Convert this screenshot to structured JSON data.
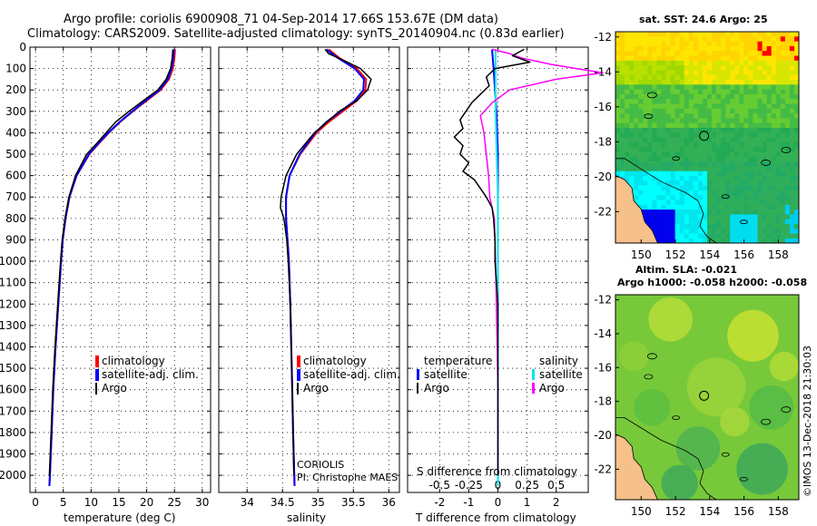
{
  "header": {
    "title_line1": "Argo profile: coriolis 6900908_71 04-Sep-2014 17.66S 153.67E (DM data)",
    "title_line2": "Climatology: CARS2009. Satellite-adjusted climatology: synTS_20140904.nc (0.83d earlier)"
  },
  "colors": {
    "climatology": "#ff0000",
    "satellite": "#0000ff",
    "argo": "#000000",
    "salinity_satellite": "#00e5ee",
    "salinity_argo": "#ff00ff",
    "land": "#f5c08a"
  },
  "depth_axis": {
    "ticks": [
      "0",
      "100",
      "200",
      "300",
      "400",
      "500",
      "600",
      "700",
      "800",
      "900",
      "1000",
      "1100",
      "1200",
      "1300",
      "1400",
      "1500",
      "1600",
      "1700",
      "1800",
      "1900",
      "2000"
    ],
    "range": [
      0,
      2080
    ]
  },
  "chart_data": [
    {
      "type": "line",
      "name": "temperature-profile",
      "xlabel": "temperature (deg C)",
      "xlim": [
        -1,
        31.5
      ],
      "xticks": [
        "0",
        "5",
        "10",
        "15",
        "20",
        "25",
        "30"
      ],
      "xtick_values": [
        0,
        5,
        10,
        15,
        20,
        25,
        30
      ],
      "ylim": [
        0,
        2080
      ],
      "legend": [
        "climatology",
        "satellite-adj. clim.",
        "Argo"
      ],
      "series": [
        {
          "name": "climatology",
          "depth": [
            10,
            50,
            100,
            150,
            200,
            250,
            300,
            350,
            400,
            450,
            500,
            600,
            700,
            800,
            900,
            1000,
            1200,
            1400,
            1600,
            1800,
            2000,
            2050
          ],
          "values": [
            25.1,
            25.0,
            24.7,
            24.0,
            22.5,
            20.0,
            17.5,
            15.2,
            13.2,
            11.4,
            9.7,
            7.4,
            6.1,
            5.4,
            4.9,
            4.6,
            4.1,
            3.6,
            3.2,
            2.9,
            2.6,
            2.5
          ]
        },
        {
          "name": "satellite-adj. clim.",
          "depth": [
            10,
            50,
            100,
            150,
            200,
            250,
            300,
            350,
            400,
            450,
            500,
            600,
            700,
            800,
            900,
            1000,
            1200,
            1400,
            1600,
            1800,
            2000,
            2050
          ],
          "values": [
            24.9,
            24.8,
            24.5,
            23.8,
            22.3,
            19.8,
            17.4,
            15.1,
            13.1,
            11.3,
            9.6,
            7.4,
            6.1,
            5.4,
            4.9,
            4.6,
            4.1,
            3.6,
            3.2,
            2.9,
            2.6,
            2.5
          ]
        },
        {
          "name": "Argo",
          "depth": [
            10,
            50,
            100,
            150,
            200,
            250,
            300,
            350,
            400,
            450,
            500,
            600,
            700,
            800,
            900,
            1000,
            1200,
            1400,
            1600,
            1800,
            2000
          ],
          "values": [
            24.7,
            24.6,
            24.3,
            23.5,
            22.0,
            19.4,
            16.8,
            14.4,
            12.7,
            11.0,
            9.2,
            7.2,
            6.0,
            5.3,
            4.8,
            4.5,
            4.0,
            3.5,
            3.1,
            2.8,
            2.5
          ]
        }
      ]
    },
    {
      "type": "line",
      "name": "salinity-profile",
      "xlabel": "salinity",
      "xlim": [
        33.6,
        36.15
      ],
      "xticks": [
        "34",
        "34.5",
        "35",
        "35.5",
        "36"
      ],
      "xtick_values": [
        34,
        34.5,
        35,
        35.5,
        36
      ],
      "ylim": [
        0,
        2080
      ],
      "legend": [
        "climatology",
        "satellite-adj. clim.",
        "Argo"
      ],
      "annotation": [
        "CORIOLIS",
        "PI: Christophe MAES"
      ],
      "series": [
        {
          "name": "climatology",
          "depth": [
            10,
            50,
            100,
            150,
            200,
            250,
            300,
            350,
            400,
            500,
            600,
            700,
            800,
            900,
            1000,
            1200,
            1500,
            1800,
            2050
          ],
          "values": [
            35.15,
            35.3,
            35.55,
            35.68,
            35.67,
            35.55,
            35.35,
            35.15,
            34.98,
            34.75,
            34.6,
            34.55,
            34.55,
            34.57,
            34.59,
            34.61,
            34.63,
            34.65,
            34.67
          ]
        },
        {
          "name": "satellite-adj. clim.",
          "depth": [
            10,
            50,
            100,
            150,
            200,
            250,
            300,
            350,
            400,
            500,
            600,
            700,
            800,
            900,
            1000,
            1200,
            1500,
            1800,
            2050
          ],
          "values": [
            35.12,
            35.28,
            35.52,
            35.65,
            35.64,
            35.52,
            35.32,
            35.12,
            34.96,
            34.74,
            34.6,
            34.55,
            34.55,
            34.57,
            34.59,
            34.61,
            34.63,
            34.65,
            34.67
          ]
        },
        {
          "name": "Argo",
          "depth": [
            10,
            30,
            60,
            100,
            150,
            200,
            250,
            300,
            400,
            500,
            600,
            700,
            750,
            800,
            900,
            1000,
            1200,
            1500,
            1800,
            2000
          ],
          "values": [
            35.1,
            35.15,
            35.35,
            35.6,
            35.75,
            35.7,
            35.55,
            35.3,
            34.95,
            34.7,
            34.55,
            34.48,
            34.47,
            34.52,
            34.56,
            34.58,
            34.61,
            34.63,
            34.65,
            34.66
          ]
        }
      ]
    },
    {
      "type": "line",
      "name": "difference-profile",
      "xlabel": "T difference from climatology",
      "xlabel2": "S difference from climatology",
      "xlim": [
        -3.1,
        3.1
      ],
      "xticks": [
        "-2",
        "-1",
        "0",
        "1",
        "2"
      ],
      "xtick_values": [
        -2,
        -1,
        0,
        1,
        2
      ],
      "sticks": [
        "-0.5",
        "-0.25",
        "0",
        "0.25",
        "0.5"
      ],
      "stick_values": [
        -0.5,
        -0.25,
        0,
        0.25,
        0.5
      ],
      "ylim": [
        0,
        2080
      ],
      "legend_left_title": "temperature",
      "legend_right_title": "salinity",
      "legend_left": [
        "satellite",
        "Argo"
      ],
      "legend_right": [
        "satellite",
        "Argo"
      ],
      "series": [
        {
          "name": "T satellite",
          "depth": [
            10,
            100,
            200,
            300,
            500,
            700,
            1000,
            1500,
            2050
          ],
          "values": [
            -0.2,
            -0.15,
            -0.1,
            -0.05,
            0,
            0,
            0,
            0,
            0
          ]
        },
        {
          "name": "T Argo",
          "depth": [
            10,
            40,
            70,
            100,
            140,
            180,
            220,
            260,
            300,
            340,
            380,
            420,
            460,
            500,
            540,
            580,
            620,
            660,
            700,
            750,
            800,
            900,
            1000,
            1200,
            1500,
            1800,
            2000
          ],
          "values": [
            0.9,
            0.5,
            1.1,
            -0.1,
            -0.4,
            -0.3,
            -0.6,
            -0.9,
            -1.1,
            -1.3,
            -1.2,
            -1.5,
            -1.2,
            -1.3,
            -1.0,
            -1.2,
            -0.8,
            -0.6,
            -0.4,
            -0.2,
            -0.15,
            -0.1,
            -0.1,
            0,
            0,
            0,
            0
          ]
        },
        {
          "name": "S satellite",
          "depth": [
            10,
            100,
            200,
            300,
            500,
            700,
            1000,
            1500,
            2050
          ],
          "values": [
            -0.02,
            -0.02,
            -0.02,
            -0.02,
            -0.01,
            0,
            0,
            0,
            0
          ]
        },
        {
          "name": "S Argo",
          "depth": [
            10,
            30,
            50,
            80,
            120,
            150,
            200,
            260,
            320,
            400,
            500,
            600,
            700,
            800,
            1000,
            1300,
            1600,
            2000
          ],
          "values": [
            -0.05,
            0.1,
            0.2,
            0.45,
            0.9,
            0.5,
            0.1,
            -0.05,
            -0.15,
            -0.12,
            -0.1,
            -0.08,
            -0.07,
            -0.03,
            -0.02,
            -0.01,
            0,
            0
          ]
        }
      ]
    },
    {
      "type": "heatmap",
      "name": "sst-map",
      "title": "sat. SST: 24.6 Argo: 25",
      "xticks": [
        "150",
        "152",
        "154",
        "156",
        "158"
      ],
      "xtick_values": [
        150,
        152,
        154,
        156,
        158
      ],
      "yticks": [
        "-12",
        "-14",
        "-16",
        "-18",
        "-20",
        "-22"
      ],
      "ytick_values": [
        -12,
        -14,
        -16,
        -18,
        -20,
        -22
      ],
      "xlim": [
        148.5,
        159.2
      ],
      "ylim": [
        -23.8,
        -11.7
      ],
      "argo_position": {
        "lon": 153.67,
        "lat": -17.66
      }
    },
    {
      "type": "heatmap",
      "name": "sla-map",
      "title": "Altim. SLA: -0.021",
      "subtitle": "Argo h1000: -0.058 h2000: -0.058",
      "xticks": [
        "150",
        "152",
        "154",
        "156",
        "158"
      ],
      "xtick_values": [
        150,
        152,
        154,
        156,
        158
      ],
      "yticks": [
        "-12",
        "-14",
        "-16",
        "-18",
        "-20",
        "-22"
      ],
      "ytick_values": [
        -12,
        -14,
        -16,
        -18,
        -20,
        -22
      ],
      "xlim": [
        148.5,
        159.2
      ],
      "ylim": [
        -23.8,
        -11.7
      ],
      "argo_position": {
        "lon": 153.67,
        "lat": -17.66
      }
    }
  ],
  "watermark": "©IMOS 13-Dec-2018 21:30:03"
}
